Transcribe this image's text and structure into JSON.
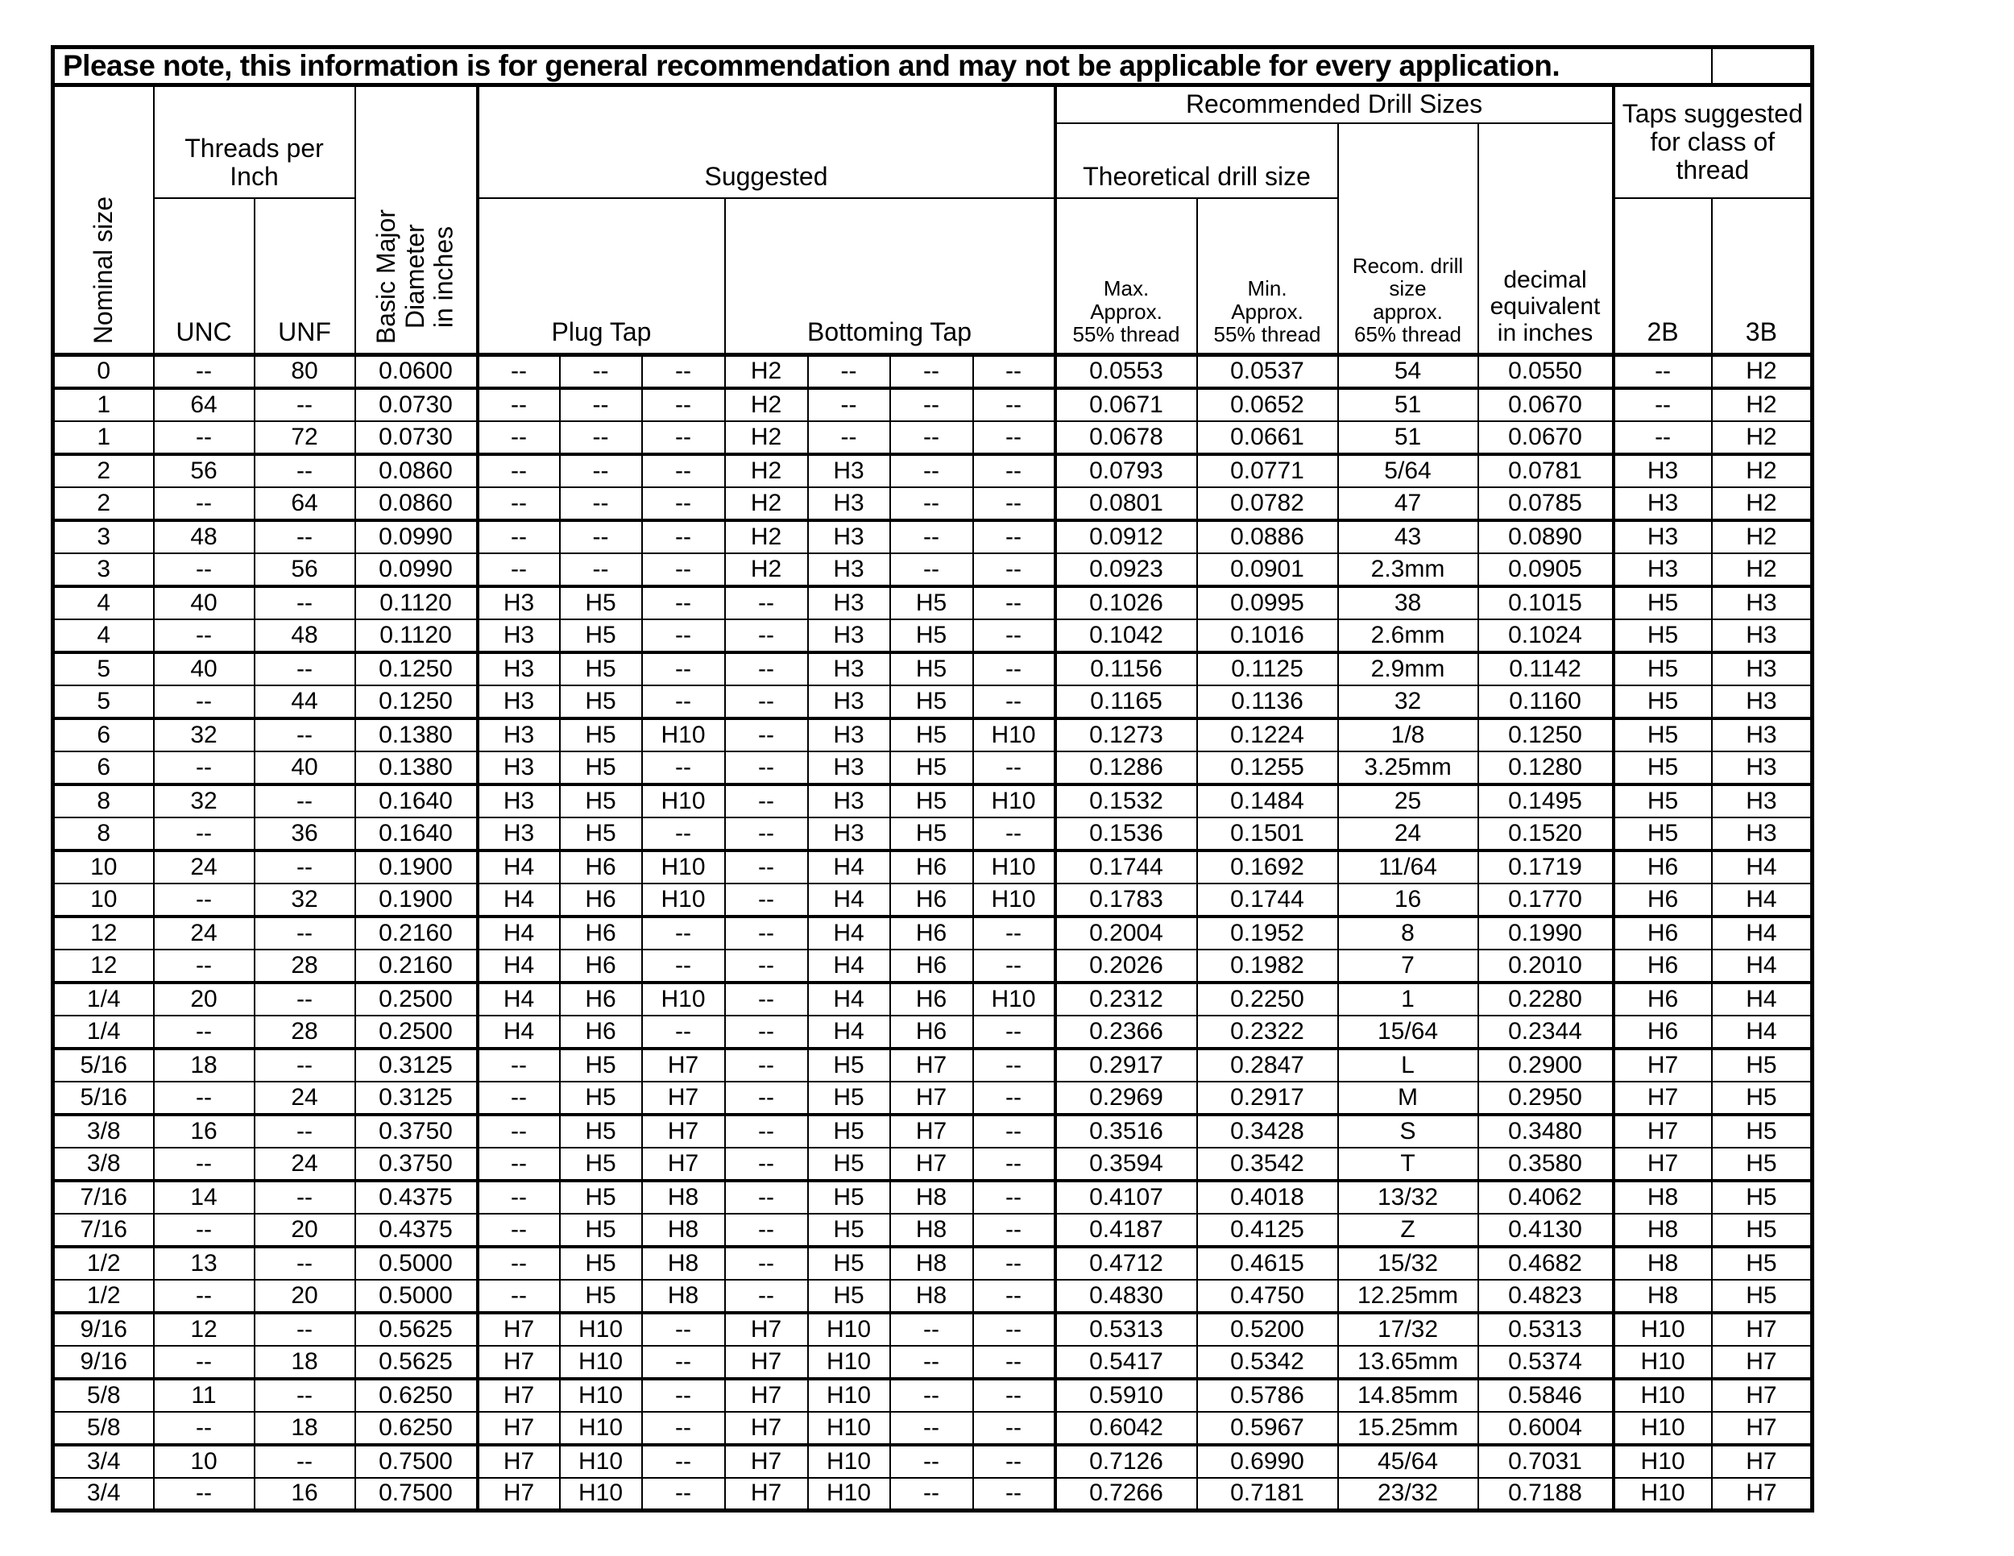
{
  "title": "Please note, this information is for general recommendation and may not be applicable for every application.",
  "header": {
    "nominal_size": "Nominal size",
    "threads_per_inch": "Threads per\nInch",
    "unc": "UNC",
    "unf": "UNF",
    "basic_major_diameter": "Basic Major\nDiameter\nin inches",
    "suggested": "Suggested",
    "plug_tap": "Plug Tap",
    "bottoming_tap": "Bottoming Tap",
    "recommended_drill_sizes": "Recommended Drill Sizes",
    "theoretical_drill_size": "Theoretical drill size",
    "max_approx": "Max.\nApprox.\n55% thread",
    "min_approx": "Min.\nApprox.\n55% thread",
    "recom_drill": "Recom. drill\nsize\napprox.\n65% thread",
    "decimal_equivalent": "decimal\nequivalent\nin inches",
    "taps_suggested": "Taps suggested\nfor class of\nthread",
    "class_2b": "2B",
    "class_3b": "3B"
  },
  "columns": [
    "nominal-size",
    "unc",
    "unf",
    "basic-major-diameter",
    "plug-tap-1",
    "plug-tap-2",
    "plug-tap-3",
    "bottoming-tap-1",
    "bottoming-tap-2",
    "bottoming-tap-3",
    "bottoming-tap-4",
    "max-approx-55",
    "min-approx-55",
    "recom-drill-65",
    "decimal-equivalent",
    "class-2b",
    "class-3b"
  ],
  "rows": [
    [
      "0",
      "--",
      "80",
      "0.0600",
      "--",
      "--",
      "--",
      "H2",
      "--",
      "--",
      "--",
      "0.0553",
      "0.0537",
      "54",
      "0.0550",
      "--",
      "H2"
    ],
    [
      "1",
      "64",
      "--",
      "0.0730",
      "--",
      "--",
      "--",
      "H2",
      "--",
      "--",
      "--",
      "0.0671",
      "0.0652",
      "51",
      "0.0670",
      "--",
      "H2"
    ],
    [
      "1",
      "--",
      "72",
      "0.0730",
      "--",
      "--",
      "--",
      "H2",
      "--",
      "--",
      "--",
      "0.0678",
      "0.0661",
      "51",
      "0.0670",
      "--",
      "H2"
    ],
    [
      "2",
      "56",
      "--",
      "0.0860",
      "--",
      "--",
      "--",
      "H2",
      "H3",
      "--",
      "--",
      "0.0793",
      "0.0771",
      "5/64",
      "0.0781",
      "H3",
      "H2"
    ],
    [
      "2",
      "--",
      "64",
      "0.0860",
      "--",
      "--",
      "--",
      "H2",
      "H3",
      "--",
      "--",
      "0.0801",
      "0.0782",
      "47",
      "0.0785",
      "H3",
      "H2"
    ],
    [
      "3",
      "48",
      "--",
      "0.0990",
      "--",
      "--",
      "--",
      "H2",
      "H3",
      "--",
      "--",
      "0.0912",
      "0.0886",
      "43",
      "0.0890",
      "H3",
      "H2"
    ],
    [
      "3",
      "--",
      "56",
      "0.0990",
      "--",
      "--",
      "--",
      "H2",
      "H3",
      "--",
      "--",
      "0.0923",
      "0.0901",
      "2.3mm",
      "0.0905",
      "H3",
      "H2"
    ],
    [
      "4",
      "40",
      "--",
      "0.1120",
      "H3",
      "H5",
      "--",
      "--",
      "H3",
      "H5",
      "--",
      "0.1026",
      "0.0995",
      "38",
      "0.1015",
      "H5",
      "H3"
    ],
    [
      "4",
      "--",
      "48",
      "0.1120",
      "H3",
      "H5",
      "--",
      "--",
      "H3",
      "H5",
      "--",
      "0.1042",
      "0.1016",
      "2.6mm",
      "0.1024",
      "H5",
      "H3"
    ],
    [
      "5",
      "40",
      "--",
      "0.1250",
      "H3",
      "H5",
      "--",
      "--",
      "H3",
      "H5",
      "--",
      "0.1156",
      "0.1125",
      "2.9mm",
      "0.1142",
      "H5",
      "H3"
    ],
    [
      "5",
      "--",
      "44",
      "0.1250",
      "H3",
      "H5",
      "--",
      "--",
      "H3",
      "H5",
      "--",
      "0.1165",
      "0.1136",
      "32",
      "0.1160",
      "H5",
      "H3"
    ],
    [
      "6",
      "32",
      "--",
      "0.1380",
      "H3",
      "H5",
      "H10",
      "--",
      "H3",
      "H5",
      "H10",
      "0.1273",
      "0.1224",
      "1/8",
      "0.1250",
      "H5",
      "H3"
    ],
    [
      "6",
      "--",
      "40",
      "0.1380",
      "H3",
      "H5",
      "--",
      "--",
      "H3",
      "H5",
      "--",
      "0.1286",
      "0.1255",
      "3.25mm",
      "0.1280",
      "H5",
      "H3"
    ],
    [
      "8",
      "32",
      "--",
      "0.1640",
      "H3",
      "H5",
      "H10",
      "--",
      "H3",
      "H5",
      "H10",
      "0.1532",
      "0.1484",
      "25",
      "0.1495",
      "H5",
      "H3"
    ],
    [
      "8",
      "--",
      "36",
      "0.1640",
      "H3",
      "H5",
      "--",
      "--",
      "H3",
      "H5",
      "--",
      "0.1536",
      "0.1501",
      "24",
      "0.1520",
      "H5",
      "H3"
    ],
    [
      "10",
      "24",
      "--",
      "0.1900",
      "H4",
      "H6",
      "H10",
      "--",
      "H4",
      "H6",
      "H10",
      "0.1744",
      "0.1692",
      "11/64",
      "0.1719",
      "H6",
      "H4"
    ],
    [
      "10",
      "--",
      "32",
      "0.1900",
      "H4",
      "H6",
      "H10",
      "--",
      "H4",
      "H6",
      "H10",
      "0.1783",
      "0.1744",
      "16",
      "0.1770",
      "H6",
      "H4"
    ],
    [
      "12",
      "24",
      "--",
      "0.2160",
      "H4",
      "H6",
      "--",
      "--",
      "H4",
      "H6",
      "--",
      "0.2004",
      "0.1952",
      "8",
      "0.1990",
      "H6",
      "H4"
    ],
    [
      "12",
      "--",
      "28",
      "0.2160",
      "H4",
      "H6",
      "--",
      "--",
      "H4",
      "H6",
      "--",
      "0.2026",
      "0.1982",
      "7",
      "0.2010",
      "H6",
      "H4"
    ],
    [
      "1/4",
      "20",
      "--",
      "0.2500",
      "H4",
      "H6",
      "H10",
      "--",
      "H4",
      "H6",
      "H10",
      "0.2312",
      "0.2250",
      "1",
      "0.2280",
      "H6",
      "H4"
    ],
    [
      "1/4",
      "--",
      "28",
      "0.2500",
      "H4",
      "H6",
      "--",
      "--",
      "H4",
      "H6",
      "--",
      "0.2366",
      "0.2322",
      "15/64",
      "0.2344",
      "H6",
      "H4"
    ],
    [
      "5/16",
      "18",
      "--",
      "0.3125",
      "--",
      "H5",
      "H7",
      "--",
      "H5",
      "H7",
      "--",
      "0.2917",
      "0.2847",
      "L",
      "0.2900",
      "H7",
      "H5"
    ],
    [
      "5/16",
      "--",
      "24",
      "0.3125",
      "--",
      "H5",
      "H7",
      "--",
      "H5",
      "H7",
      "--",
      "0.2969",
      "0.2917",
      "M",
      "0.2950",
      "H7",
      "H5"
    ],
    [
      "3/8",
      "16",
      "--",
      "0.3750",
      "--",
      "H5",
      "H7",
      "--",
      "H5",
      "H7",
      "--",
      "0.3516",
      "0.3428",
      "S",
      "0.3480",
      "H7",
      "H5"
    ],
    [
      "3/8",
      "--",
      "24",
      "0.3750",
      "--",
      "H5",
      "H7",
      "--",
      "H5",
      "H7",
      "--",
      "0.3594",
      "0.3542",
      "T",
      "0.3580",
      "H7",
      "H5"
    ],
    [
      "7/16",
      "14",
      "--",
      "0.4375",
      "--",
      "H5",
      "H8",
      "--",
      "H5",
      "H8",
      "--",
      "0.4107",
      "0.4018",
      "13/32",
      "0.4062",
      "H8",
      "H5"
    ],
    [
      "7/16",
      "--",
      "20",
      "0.4375",
      "--",
      "H5",
      "H8",
      "--",
      "H5",
      "H8",
      "--",
      "0.4187",
      "0.4125",
      "Z",
      "0.4130",
      "H8",
      "H5"
    ],
    [
      "1/2",
      "13",
      "--",
      "0.5000",
      "--",
      "H5",
      "H8",
      "--",
      "H5",
      "H8",
      "--",
      "0.4712",
      "0.4615",
      "15/32",
      "0.4682",
      "H8",
      "H5"
    ],
    [
      "1/2",
      "--",
      "20",
      "0.5000",
      "--",
      "H5",
      "H8",
      "--",
      "H5",
      "H8",
      "--",
      "0.4830",
      "0.4750",
      "12.25mm",
      "0.4823",
      "H8",
      "H5"
    ],
    [
      "9/16",
      "12",
      "--",
      "0.5625",
      "H7",
      "H10",
      "--",
      "H7",
      "H10",
      "--",
      "--",
      "0.5313",
      "0.5200",
      "17/32",
      "0.5313",
      "H10",
      "H7"
    ],
    [
      "9/16",
      "--",
      "18",
      "0.5625",
      "H7",
      "H10",
      "--",
      "H7",
      "H10",
      "--",
      "--",
      "0.5417",
      "0.5342",
      "13.65mm",
      "0.5374",
      "H10",
      "H7"
    ],
    [
      "5/8",
      "11",
      "--",
      "0.6250",
      "H7",
      "H10",
      "--",
      "H7",
      "H10",
      "--",
      "--",
      "0.5910",
      "0.5786",
      "14.85mm",
      "0.5846",
      "H10",
      "H7"
    ],
    [
      "5/8",
      "--",
      "18",
      "0.6250",
      "H7",
      "H10",
      "--",
      "H7",
      "H10",
      "--",
      "--",
      "0.6042",
      "0.5967",
      "15.25mm",
      "0.6004",
      "H10",
      "H7"
    ],
    [
      "3/4",
      "10",
      "--",
      "0.7500",
      "H7",
      "H10",
      "--",
      "H7",
      "H10",
      "--",
      "--",
      "0.7126",
      "0.6990",
      "45/64",
      "0.7031",
      "H10",
      "H7"
    ],
    [
      "3/4",
      "--",
      "16",
      "0.7500",
      "H7",
      "H10",
      "--",
      "H7",
      "H10",
      "--",
      "--",
      "0.7266",
      "0.7181",
      "23/32",
      "0.7188",
      "H10",
      "H7"
    ]
  ]
}
